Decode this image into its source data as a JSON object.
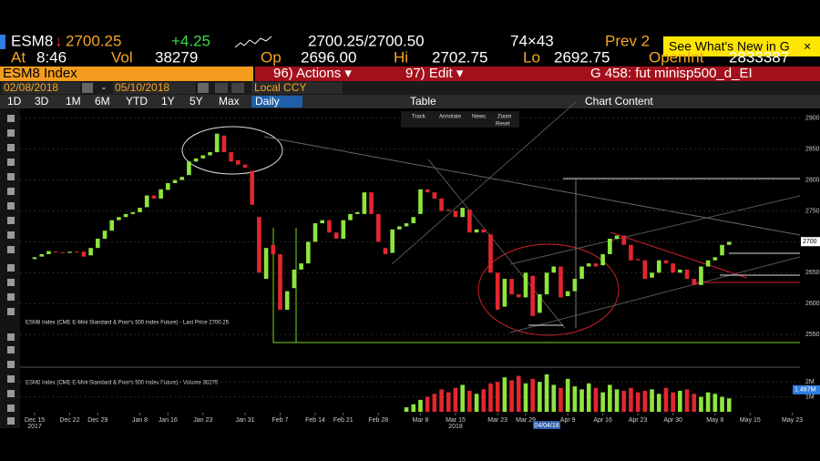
{
  "header": {
    "ticker": "ESM8",
    "arrow": "↓",
    "last": "2700.25",
    "change": "+4.25",
    "bid_ask": "2700.25/2700.50",
    "size": "74×43",
    "prev": "Prev 2",
    "whats_new": "See What's New in G",
    "close": "×",
    "time_label": "At",
    "time": "8:46",
    "vol_label": "Vol",
    "vol": "38279",
    "open_label": "Op",
    "open": "2696.00",
    "high_label": "Hi",
    "high": "2702.75",
    "low_label": "Lo",
    "low": "2692.75",
    "oi_label": "OpenInt",
    "oi": "2833387"
  },
  "toolbar": {
    "security": "ESM8 Index",
    "actions": "96) Actions ▾",
    "edit": "97) Edit ▾",
    "template": "G 458: fut minisp500_d_EI",
    "start_date": "02/08/2018",
    "dash": "-",
    "end_date": "05/10/2018",
    "currency": "Local CCY",
    "periods": [
      "1D",
      "3D",
      "1M",
      "6M",
      "YTD",
      "1Y",
      "5Y",
      "Max"
    ],
    "frequency": "Daily",
    "table": "Table",
    "chart_content": "Chart Content"
  },
  "chart_tools": [
    "Track",
    "Annotate",
    "News",
    "Zoom",
    "Reset"
  ],
  "chart_data": {
    "type": "candlestick",
    "price_legend": "ESM8 Index (CME E-Mini Standard & Poor's 500 Index Future) - Last Price 2700.25",
    "volume_legend": "ESM8 Index (CME E-Mini Standard & Poor's 500 Index Future) - Volume 38279",
    "up_color": "#8ee53f",
    "down_color": "#e3262f",
    "candles": [
      [
        2672,
        2675
      ],
      [
        2676,
        2680
      ],
      [
        2680,
        2685
      ],
      [
        2684,
        2683
      ],
      [
        2683,
        2682
      ],
      [
        2682,
        2684
      ],
      [
        2684,
        2683
      ],
      [
        2684,
        2676
      ],
      [
        2678,
        2690
      ],
      [
        2690,
        2705
      ],
      [
        2705,
        2718
      ],
      [
        2718,
        2735
      ],
      [
        2735,
        2740
      ],
      [
        2740,
        2745
      ],
      [
        2745,
        2748
      ],
      [
        2748,
        2755
      ],
      [
        2756,
        2775
      ],
      [
        2775,
        2770
      ],
      [
        2770,
        2785
      ],
      [
        2784,
        2795
      ],
      [
        2795,
        2800
      ],
      [
        2800,
        2805
      ],
      [
        2808,
        2830
      ],
      [
        2830,
        2835
      ],
      [
        2835,
        2840
      ],
      [
        2840,
        2845
      ],
      [
        2845,
        2875
      ],
      [
        2872,
        2845
      ],
      [
        2845,
        2830
      ],
      [
        2832,
        2825
      ],
      [
        2825,
        2820
      ],
      [
        2815,
        2760
      ],
      [
        2740,
        2650
      ],
      [
        2640,
        2690
      ],
      [
        2695,
        2680
      ],
      [
        2680,
        2590
      ],
      [
        2590,
        2620
      ],
      [
        2625,
        2655
      ],
      [
        2655,
        2665
      ],
      [
        2665,
        2700
      ],
      [
        2700,
        2730
      ],
      [
        2730,
        2735
      ],
      [
        2735,
        2715
      ],
      [
        2715,
        2705
      ],
      [
        2705,
        2735
      ],
      [
        2735,
        2745
      ],
      [
        2745,
        2748
      ],
      [
        2745,
        2780
      ],
      [
        2780,
        2745
      ],
      [
        2745,
        2700
      ],
      [
        2690,
        2680
      ],
      [
        2682,
        2720
      ],
      [
        2720,
        2725
      ],
      [
        2725,
        2730
      ],
      [
        2730,
        2740
      ],
      [
        2745,
        2785
      ],
      [
        2785,
        2780
      ],
      [
        2780,
        2770
      ],
      [
        2770,
        2750
      ],
      [
        2752,
        2750
      ],
      [
        2750,
        2740
      ],
      [
        2740,
        2755
      ],
      [
        2752,
        2715
      ],
      [
        2715,
        2720
      ],
      [
        2720,
        2715
      ],
      [
        2712,
        2650
      ],
      [
        2650,
        2590
      ],
      [
        2595,
        2640
      ],
      [
        2640,
        2615
      ],
      [
        2615,
        2610
      ],
      [
        2610,
        2650
      ],
      [
        2645,
        2580
      ],
      [
        2585,
        2615
      ],
      [
        2615,
        2650
      ],
      [
        2650,
        2660
      ],
      [
        2660,
        2610
      ],
      [
        2612,
        2620
      ],
      [
        2620,
        2640
      ],
      [
        2640,
        2660
      ],
      [
        2660,
        2665
      ],
      [
        2665,
        2660
      ],
      [
        2662,
        2680
      ],
      [
        2680,
        2705
      ],
      [
        2705,
        2710
      ],
      [
        2710,
        2695
      ],
      [
        2695,
        2670
      ],
      [
        2672,
        2670
      ],
      [
        2670,
        2640
      ],
      [
        2642,
        2650
      ],
      [
        2650,
        2670
      ],
      [
        2670,
        2665
      ],
      [
        2665,
        2650
      ],
      [
        2650,
        2655
      ],
      [
        2655,
        2640
      ],
      [
        2640,
        2630
      ],
      [
        2630,
        2660
      ],
      [
        2660,
        2670
      ],
      [
        2670,
        2675
      ],
      [
        2678,
        2695
      ],
      [
        2695,
        2700
      ]
    ],
    "volume": [
      null,
      null,
      null,
      null,
      null,
      null,
      null,
      null,
      null,
      null,
      null,
      null,
      null,
      null,
      null,
      null,
      null,
      null,
      null,
      null,
      null,
      null,
      null,
      null,
      null,
      null,
      null,
      null,
      null,
      null,
      null,
      null,
      null,
      null,
      null,
      null,
      null,
      null,
      null,
      null,
      null,
      null,
      null,
      null,
      null,
      null,
      null,
      null,
      null,
      null,
      null,
      null,
      null,
      0.3,
      0.5,
      0.8,
      1.0,
      1.2,
      1.5,
      1.3,
      1.6,
      1.8,
      1.4,
      1.2,
      1.5,
      1.9,
      2.0,
      2.3,
      2.1,
      2.4,
      1.9,
      2.2,
      2.0,
      2.5,
      1.8,
      1.6,
      2.2,
      1.7,
      1.5,
      1.9,
      1.6,
      1.3,
      1.8,
      1.5,
      1.4,
      1.6,
      1.3,
      1.4,
      1.5,
      1.2,
      1.6,
      1.3,
      1.4,
      1.5,
      1.2,
      1.0,
      1.3,
      1.2,
      1.0,
      0.9
    ],
    "xlim": [
      -2.6,
      109.1
    ],
    "x_labels": [
      {
        "value": 0,
        "label": "Dec 15"
      },
      {
        "value": 5,
        "label": "Dec 22"
      },
      {
        "value": 9,
        "label": "Dec 29"
      },
      {
        "value": 15,
        "label": "Jan 8"
      },
      {
        "value": 19,
        "label": "Jan 16"
      },
      {
        "value": 24,
        "label": "Jan 23"
      },
      {
        "value": 30,
        "label": "Jan 31"
      },
      {
        "value": 35,
        "label": "Feb 7"
      },
      {
        "value": 40,
        "label": "Feb 14"
      },
      {
        "value": 44,
        "label": "Feb 21"
      },
      {
        "value": 49,
        "label": "Feb 28"
      },
      {
        "value": 55,
        "label": "Mar 8"
      },
      {
        "value": 60,
        "label": "Mar 15"
      },
      {
        "value": 66,
        "label": "Mar 23"
      },
      {
        "value": 70,
        "label": "Mar 29"
      },
      {
        "value": 76,
        "label": "Apr 9"
      },
      {
        "value": 81,
        "label": "Apr 16"
      },
      {
        "value": 86,
        "label": "Apr 23"
      },
      {
        "value": 91,
        "label": "Apr 30"
      },
      {
        "value": 97,
        "label": "May 8"
      },
      {
        "value": 102,
        "label": "May 15"
      },
      {
        "value": 108,
        "label": "May 23"
      }
    ],
    "year_labels": [
      {
        "value": 0,
        "label": "2017"
      },
      {
        "value": 60,
        "label": "2018"
      }
    ],
    "cursor_date": {
      "value": 73,
      "label": "04/04/18"
    },
    "ylim": [
      2500,
      2910
    ],
    "yticks": [
      2550,
      2600,
      2650,
      2700,
      2750,
      2800,
      2850,
      2900
    ],
    "last_price": {
      "value": 2700.25,
      "label": "2700"
    },
    "volume_ylim": [
      0,
      2.8
    ],
    "volume_yticks": [
      {
        "value": 1,
        "label": "1M"
      },
      {
        "value": 2,
        "label": "2M"
      }
    ],
    "volume_highlight": {
      "value": 1.467,
      "label": "1.467M"
    },
    "grid": true
  }
}
